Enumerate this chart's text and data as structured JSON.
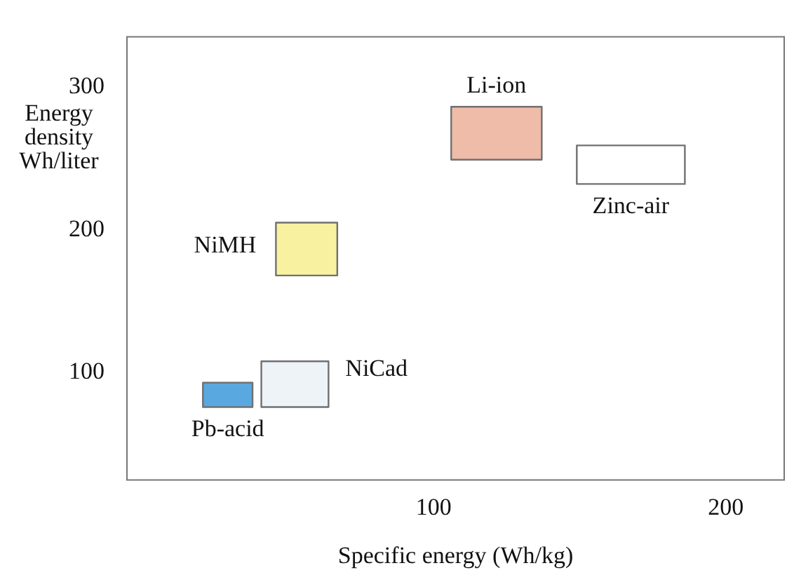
{
  "chart_data": {
    "type": "area",
    "xlabel": "Specific energy (Wh/kg)",
    "ylabel": "Energy density Wh/liter",
    "xlim": [
      -5,
      220
    ],
    "ylim": [
      25,
      335
    ],
    "xticks": [
      100,
      200
    ],
    "yticks": [
      100,
      200,
      300
    ],
    "grid": false,
    "marker": "none",
    "series": [
      {
        "name": "Pb-acid",
        "color": "#5aa8e0",
        "x": [
          21,
          38,
          38,
          21,
          21
        ],
        "values": [
          76,
          76,
          93,
          93,
          76
        ]
      },
      {
        "name": "NiCad",
        "color": "#eef3f8",
        "x": [
          41,
          64,
          64,
          41,
          41
        ],
        "values": [
          76,
          76,
          108,
          108,
          76
        ]
      },
      {
        "name": "NiMH",
        "color": "#f8f2a0",
        "x": [
          46,
          67,
          67,
          46,
          46
        ],
        "values": [
          168,
          168,
          205,
          205,
          168
        ]
      },
      {
        "name": "Li-ion",
        "color": "#eebca8",
        "x": [
          106,
          137,
          137,
          106,
          106
        ],
        "values": [
          249,
          249,
          286,
          286,
          249
        ]
      },
      {
        "name": "Zinc-air",
        "color": "#ffffff",
        "x": [
          149,
          186,
          186,
          149,
          149
        ],
        "values": [
          232,
          232,
          259,
          259,
          232
        ]
      }
    ]
  }
}
